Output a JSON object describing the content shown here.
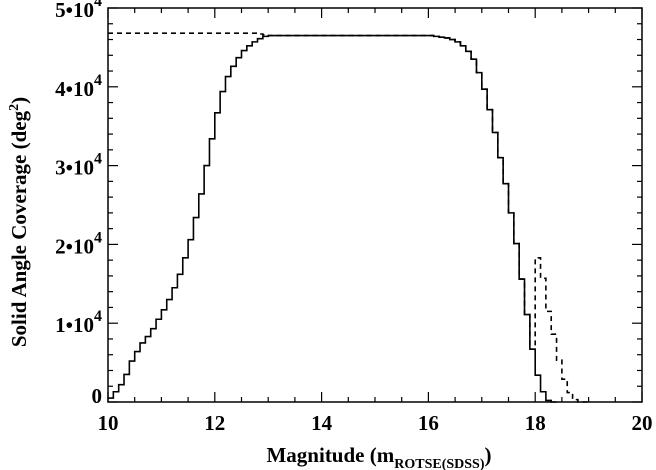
{
  "chart_data": {
    "type": "line",
    "xlabel": {
      "main": "Magnitude (m",
      "subscript": "ROTSE(SDSS)",
      "close": ")"
    },
    "ylabel": {
      "main": "Solid Angle Coverage (deg",
      "superscript": "2",
      "close": ")"
    },
    "xlim": [
      10,
      20
    ],
    "ylim": [
      0,
      50000
    ],
    "x_ticks": [
      {
        "value": 10,
        "label": "10"
      },
      {
        "value": 12,
        "label": "12"
      },
      {
        "value": 14,
        "label": "14"
      },
      {
        "value": 16,
        "label": "16"
      },
      {
        "value": 18,
        "label": "18"
      },
      {
        "value": 20,
        "label": "20"
      }
    ],
    "y_ticks": [
      {
        "value": 0,
        "mantissa": "0",
        "exp": ""
      },
      {
        "value": 10000,
        "mantissa": "1•10",
        "exp": "4"
      },
      {
        "value": 20000,
        "mantissa": "2•10",
        "exp": "4"
      },
      {
        "value": 30000,
        "mantissa": "3•10",
        "exp": "4"
      },
      {
        "value": 40000,
        "mantissa": "4•10",
        "exp": "4"
      },
      {
        "value": 50000,
        "mantissa": "5•10",
        "exp": "4"
      }
    ],
    "grid": false,
    "series": [
      {
        "style": "solid",
        "step": true,
        "x": [
          10.0,
          10.1,
          10.2,
          10.3,
          10.4,
          10.5,
          10.6,
          10.7,
          10.8,
          10.9,
          11.0,
          11.1,
          11.2,
          11.3,
          11.4,
          11.5,
          11.6,
          11.7,
          11.8,
          11.9,
          12.0,
          12.1,
          12.2,
          12.3,
          12.4,
          12.5,
          12.6,
          12.7,
          12.8,
          12.9,
          13.0,
          16.0,
          16.1,
          16.2,
          16.3,
          16.4,
          16.5,
          16.6,
          16.7,
          16.8,
          16.9,
          17.0,
          17.1,
          17.2,
          17.3,
          17.4,
          17.5,
          17.6,
          17.7,
          17.8,
          17.9,
          18.0,
          18.1,
          18.2,
          18.3,
          18.4
        ],
        "y": [
          500,
          1300,
          2200,
          3500,
          5200,
          6400,
          7500,
          8300,
          9300,
          10500,
          11700,
          13000,
          14500,
          16200,
          18300,
          20600,
          23400,
          26400,
          30000,
          33400,
          36700,
          39400,
          41300,
          42600,
          43700,
          44600,
          45200,
          45700,
          46100,
          46400,
          46500,
          46500,
          46400,
          46300,
          46200,
          46000,
          45700,
          45200,
          44500,
          43500,
          41800,
          39700,
          37100,
          34200,
          31000,
          27700,
          24000,
          20100,
          15600,
          11100,
          6700,
          3400,
          1300,
          200,
          0,
          0
        ]
      },
      {
        "style": "dashed",
        "step": true,
        "x": [
          10.0,
          12.8,
          12.9,
          13.0,
          16.0,
          16.1,
          16.2,
          16.3,
          16.4,
          16.5,
          16.6,
          16.7,
          16.8,
          16.9,
          17.0,
          17.1,
          17.2,
          17.3,
          17.4,
          17.5,
          17.6,
          17.7,
          17.8,
          17.9,
          18.0,
          18.1,
          18.2,
          18.3,
          18.4,
          18.5,
          18.6,
          18.7,
          18.8,
          18.9,
          19.0
        ],
        "y": [
          46800,
          46700,
          46600,
          46500,
          46500,
          46400,
          46300,
          46200,
          46000,
          45700,
          45200,
          44500,
          43500,
          41800,
          39700,
          37100,
          34200,
          31000,
          27700,
          24000,
          20100,
          15600,
          11100,
          6700,
          18300,
          15700,
          11500,
          8600,
          5300,
          2900,
          1200,
          300,
          0,
          0,
          0
        ]
      }
    ]
  }
}
